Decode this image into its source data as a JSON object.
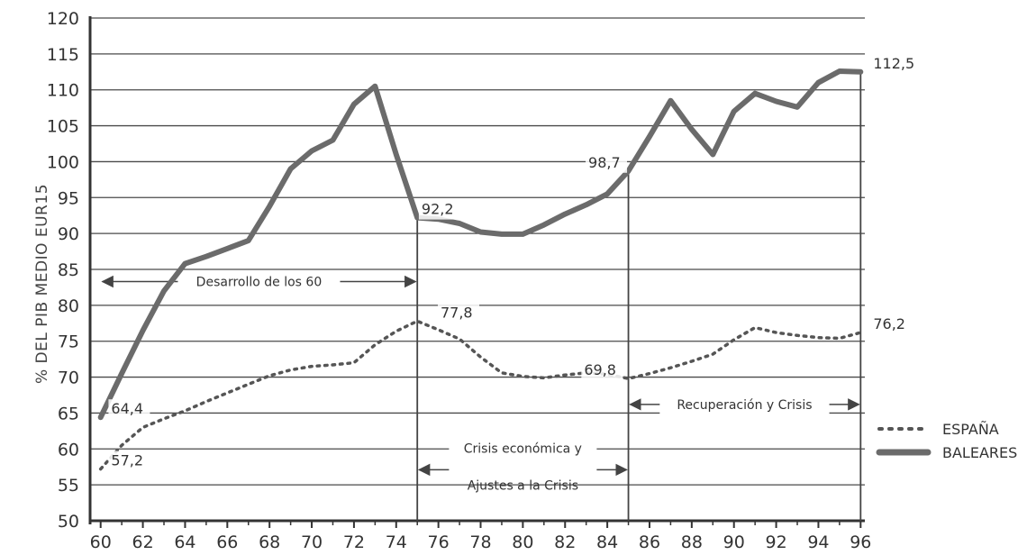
{
  "chart_data": {
    "type": "line",
    "ylabel": "% DEL PIB MEDIO EUR15",
    "xlabel": "",
    "x_ticks": [
      "60",
      "62",
      "64",
      "66",
      "68",
      "70",
      "72",
      "74",
      "76",
      "78",
      "80",
      "82",
      "84",
      "86",
      "88",
      "90",
      "92",
      "94",
      "96"
    ],
    "y_ticks": [
      "50",
      "55",
      "60",
      "65",
      "70",
      "75",
      "80",
      "85",
      "90",
      "95",
      "100",
      "105",
      "110",
      "115",
      "120"
    ],
    "xlim": [
      1959.5,
      1996.2
    ],
    "ylim": [
      50,
      120
    ],
    "grid": "horizontal",
    "legend_position": "right",
    "series": [
      {
        "name": "ESPAÑA",
        "style": "dotted",
        "color": "#555555",
        "x": [
          1960,
          1961,
          1962,
          1963,
          1964,
          1965,
          1966,
          1967,
          1968,
          1969,
          1970,
          1971,
          1972,
          1973,
          1974,
          1975,
          1976,
          1977,
          1978,
          1979,
          1980,
          1981,
          1982,
          1983,
          1984,
          1985,
          1986,
          1987,
          1988,
          1989,
          1990,
          1991,
          1992,
          1993,
          1994,
          1995,
          1996
        ],
        "y": [
          57.2,
          60.5,
          63,
          64.2,
          65.3,
          66.6,
          67.8,
          69,
          70.2,
          71,
          71.5,
          71.7,
          72,
          74.5,
          76.4,
          77.8,
          76.6,
          75.3,
          72.8,
          70.6,
          70.1,
          69.9,
          70.3,
          70.6,
          70.4,
          69.8,
          70.5,
          71.3,
          72.2,
          73.2,
          75.2,
          76.9,
          76.2,
          75.8,
          75.5,
          75.4,
          76.2
        ]
      },
      {
        "name": "BALEARES",
        "style": "solid",
        "color": "#6b6b6b",
        "x": [
          1960,
          1961,
          1962,
          1963,
          1964,
          1965,
          1966,
          1967,
          1968,
          1969,
          1970,
          1971,
          1972,
          1973,
          1974,
          1975,
          1976,
          1977,
          1978,
          1979,
          1980,
          1981,
          1982,
          1983,
          1984,
          1985,
          1986,
          1987,
          1988,
          1989,
          1990,
          1991,
          1992,
          1993,
          1994,
          1995,
          1996
        ],
        "y": [
          64.4,
          70.5,
          76.5,
          82,
          85.8,
          86.8,
          87.9,
          89,
          93.8,
          99,
          101.5,
          103,
          108,
          110.5,
          101,
          92.2,
          92,
          91.4,
          90.2,
          89.9,
          89.9,
          91.2,
          92.7,
          94,
          95.5,
          98.7,
          103.5,
          108.5,
          104.5,
          101,
          107,
          109.5,
          108.4,
          107.6,
          111,
          112.6,
          112.5
        ]
      }
    ],
    "annotations": [
      {
        "text": "64,4",
        "x": 1960.5,
        "y": 64.4
      },
      {
        "text": "57,2",
        "x": 1960.5,
        "y": 57.2
      },
      {
        "text": "92,2",
        "x": 1975.2,
        "y": 92.2
      },
      {
        "text": "77,8",
        "x": 1976.1,
        "y": 77.8
      },
      {
        "text": "98,7",
        "x": 1983.1,
        "y": 98.7
      },
      {
        "text": "69,8",
        "x": 1982.9,
        "y": 69.8
      },
      {
        "text": "112,5",
        "x": 1996.6,
        "y": 112.5
      },
      {
        "text": "76,2",
        "x": 1996.6,
        "y": 76.2
      }
    ],
    "periods": [
      {
        "label_lines": [
          "Desarrollo de los 60"
        ],
        "x_start": 1960,
        "x_end": 1975,
        "y": 83.3
      },
      {
        "label_lines": [
          "Crisis económica y",
          "Ajustes a la Crisis"
        ],
        "x_start": 1975,
        "x_end": 1985,
        "y": 57.1
      },
      {
        "label_lines": [
          "Recuperación y Crisis"
        ],
        "x_start": 1985,
        "x_end": 1996,
        "y": 66.2
      }
    ],
    "vertical_markers": [
      {
        "x": 1975,
        "y_top": 92.2
      },
      {
        "x": 1985,
        "y_top": 98.7
      },
      {
        "x": 1996,
        "y_top": 112.5
      }
    ]
  }
}
